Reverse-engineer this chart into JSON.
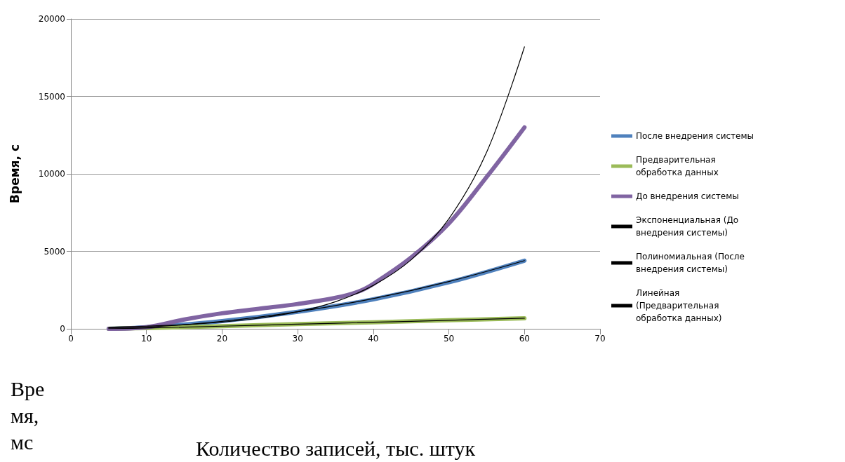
{
  "chart_data": {
    "type": "line",
    "ylabel": "Время, с",
    "xlabel": "Количество записей, тыс. штук",
    "annotations": [
      "Время, мс"
    ],
    "xlim": [
      0,
      70
    ],
    "xticks": [
      0,
      10,
      20,
      30,
      40,
      50,
      60,
      70
    ],
    "ylim": [
      0,
      20000
    ],
    "yticks": [
      0,
      5000,
      10000,
      15000,
      20000
    ],
    "grid": "y",
    "legend": "right",
    "marker": "none",
    "line_style": "solid",
    "series": [
      {
        "name": "После внедрения системы",
        "color": "#4f81bd",
        "x": [
          5,
          10,
          20,
          30,
          40,
          50,
          60
        ],
        "values": [
          0,
          100,
          500,
          1100,
          1900,
          3000,
          4400
        ]
      },
      {
        "name": "Предварительная обработка данных",
        "color": "#9bbb59",
        "x": [
          5,
          10,
          20,
          30,
          40,
          50,
          60
        ],
        "values": [
          0,
          50,
          170,
          300,
          420,
          550,
          680
        ]
      },
      {
        "name": "До внедрения системы",
        "color": "#8064a2",
        "x": [
          5,
          10,
          15,
          20,
          25,
          30,
          35,
          38,
          40,
          45,
          50,
          55,
          60
        ],
        "values": [
          0,
          100,
          600,
          1000,
          1300,
          1600,
          2000,
          2400,
          2900,
          4600,
          6800,
          9800,
          13000
        ]
      },
      {
        "name": "Экспоненциальная (До внедрения системы)",
        "color": "#000000",
        "x": [
          5,
          10,
          15,
          20,
          25,
          30,
          35,
          40,
          45,
          50,
          55,
          60
        ],
        "values": [
          100,
          170,
          270,
          430,
          690,
          1100,
          1750,
          2800,
          4450,
          7100,
          11400,
          18200
        ]
      },
      {
        "name": "Полиномиальная (После внедрения системы)",
        "color": "#000000",
        "x": [
          5,
          10,
          20,
          30,
          40,
          50,
          60
        ],
        "values": [
          50,
          100,
          480,
          1100,
          1950,
          3050,
          4400
        ]
      },
      {
        "name": "Линейная (Предварительная обработка данных)",
        "color": "#000000",
        "x": [
          5,
          10,
          20,
          30,
          40,
          50,
          60
        ],
        "values": [
          0,
          50,
          170,
          300,
          420,
          550,
          680
        ]
      }
    ]
  }
}
